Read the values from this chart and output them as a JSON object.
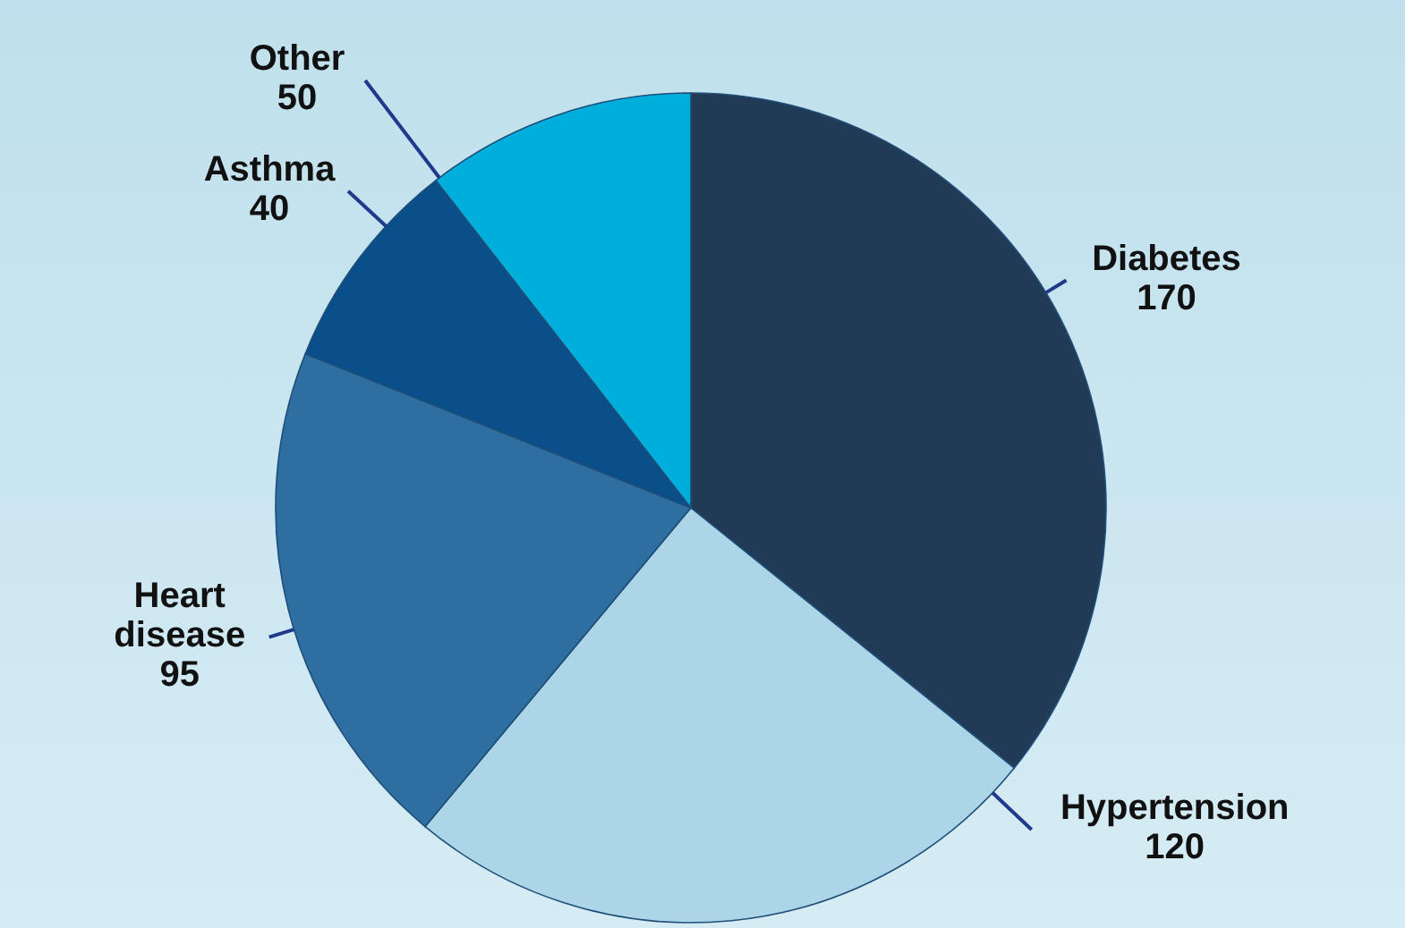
{
  "chart_data": {
    "type": "pie",
    "categories": [
      "Diabetes",
      "Hypertension",
      "Heart disease",
      "Asthma",
      "Other"
    ],
    "values": [
      170,
      120,
      95,
      40,
      50
    ],
    "colors": [
      "#213a56",
      "#acd5e8",
      "#2e6ea0",
      "#0b4f8a",
      "#00aedc"
    ],
    "data_labels": true
  }
}
